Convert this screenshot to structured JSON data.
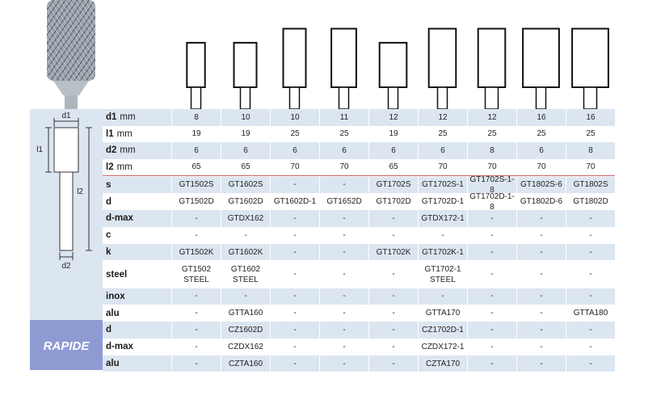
{
  "diagram_labels": {
    "d1": "d1",
    "l1": "l1",
    "l2": "l2",
    "d2": "d2"
  },
  "rapide_label": "RAPIDE",
  "dimension_rows": [
    {
      "label": "d1",
      "unit": "mm",
      "values": [
        8,
        10,
        10,
        11,
        12,
        12,
        12,
        16,
        16
      ]
    },
    {
      "label": "l1",
      "unit": "mm",
      "values": [
        19,
        19,
        25,
        25,
        19,
        25,
        25,
        25,
        25
      ]
    },
    {
      "label": "d2",
      "unit": "mm",
      "values": [
        6,
        6,
        6,
        6,
        6,
        6,
        8,
        6,
        8
      ]
    },
    {
      "label": "l2",
      "unit": "mm",
      "values": [
        65,
        65,
        70,
        70,
        65,
        70,
        70,
        70,
        70
      ]
    }
  ],
  "rows": [
    {
      "label": "s",
      "cells": [
        "GT1502S",
        "GT1602S",
        "-",
        "-",
        "GT1702S",
        "GT1702S-1",
        "GT1702S-1-8",
        "GT1802S-6",
        "GT1802S"
      ]
    },
    {
      "label": "d",
      "cells": [
        "GT1502D",
        "GT1602D",
        "GT1602D-1",
        "GT1652D",
        "GT1702D",
        "GT1702D-1",
        "GT1702D-1-8",
        "GT1802D-6",
        "GT1802D"
      ]
    },
    {
      "label": "d-max",
      "cells": [
        "-",
        "GTDX162",
        "-",
        "-",
        "-",
        "GTDX172-1",
        "-",
        "-",
        "-"
      ]
    },
    {
      "label": "c",
      "cells": [
        "-",
        "-",
        "-",
        "-",
        "-",
        "-",
        "-",
        "-",
        "-"
      ]
    },
    {
      "label": "k",
      "cells": [
        "GT1502K",
        "GT1602K",
        "-",
        "-",
        "GT1702K",
        "GT1702K-1",
        "-",
        "-",
        "-"
      ]
    },
    {
      "label": "steel",
      "cells": [
        "GT1502\nSTEEL",
        "GT1602\nSTEEL",
        "-",
        "-",
        "-",
        "GT1702-1\nSTEEL",
        "-",
        "-",
        "-"
      ]
    },
    {
      "label": "inox",
      "cells": [
        "-",
        "-",
        "-",
        "-",
        "-",
        "-",
        "-",
        "-",
        "-"
      ]
    },
    {
      "label": "alu",
      "cells": [
        "-",
        "GTTA160",
        "-",
        "-",
        "-",
        "GTTA170",
        "-",
        "-",
        "GTTA180"
      ]
    }
  ],
  "rapide_rows": [
    {
      "label": "d",
      "cells": [
        "-",
        "CZ1602D",
        "-",
        "-",
        "-",
        "CZ1702D-1",
        "-",
        "-",
        "-"
      ]
    },
    {
      "label": "d-max",
      "cells": [
        "-",
        "CZDX162",
        "-",
        "-",
        "-",
        "CZDX172-1",
        "-",
        "-",
        "-"
      ]
    },
    {
      "label": "alu",
      "cells": [
        "-",
        "CZTA160",
        "-",
        "-",
        "-",
        "CZTA170",
        "-",
        "-",
        "-"
      ]
    }
  ]
}
